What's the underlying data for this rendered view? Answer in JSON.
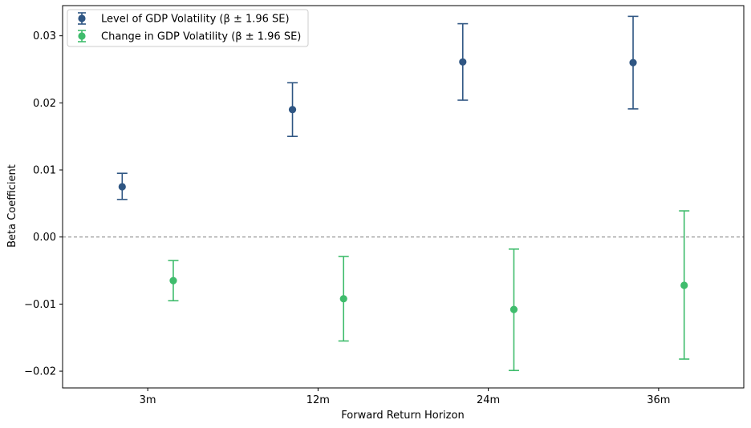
{
  "chart_data": {
    "type": "scatter",
    "subtype": "errorbar",
    "xlabel": "Forward Return Horizon",
    "ylabel": "Beta Coefficient",
    "categories": [
      "3m",
      "12m",
      "24m",
      "36m"
    ],
    "ylim": [
      -0.0225,
      0.0345
    ],
    "yticks": [
      -0.02,
      -0.01,
      0.0,
      0.01,
      0.02,
      0.03
    ],
    "ytick_labels": [
      "−0.02",
      "−0.01",
      "0.00",
      "0.01",
      "0.02",
      "0.03"
    ],
    "reference_line": {
      "y": 0,
      "style": "dashed",
      "color": "#808080"
    },
    "grid": false,
    "legend_position": "top-left",
    "series": [
      {
        "name": "Level of GDP Volatility (β ± 1.96 SE)",
        "color": "#2f5683",
        "offset": -0.15,
        "values": [
          0.0075,
          0.019,
          0.0261,
          0.026
        ],
        "lower": [
          0.0056,
          0.015,
          0.0204,
          0.0191
        ],
        "upper": [
          0.0095,
          0.023,
          0.0318,
          0.0329
        ]
      },
      {
        "name": "Change in GDP Volatility (β ± 1.96 SE)",
        "color": "#3fbc6c",
        "offset": 0.15,
        "values": [
          -0.0065,
          -0.0092,
          -0.0108,
          -0.0072
        ],
        "lower": [
          -0.0095,
          -0.0155,
          -0.0199,
          -0.0182
        ],
        "upper": [
          -0.0035,
          -0.0029,
          -0.0018,
          0.0039
        ]
      }
    ]
  }
}
